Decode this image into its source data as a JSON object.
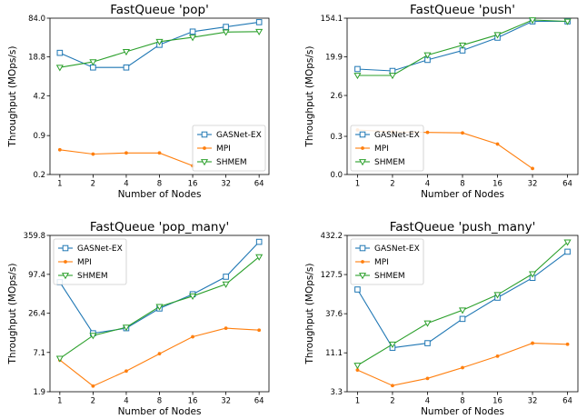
{
  "chart_data": [
    {
      "type": "line",
      "title": "FastQueue 'pop'",
      "xlabel": "Number of Nodes",
      "ylabel": "Throughput (MOps/s)",
      "y_scale": "log",
      "ylim": [
        0.2,
        84.0
      ],
      "yticks": [
        "0.2",
        "0.9",
        "4.2",
        "18.8",
        "84.0"
      ],
      "ytick_values": [
        0.2,
        0.9,
        4.2,
        18.8,
        84.0
      ],
      "categories": [
        "1",
        "2",
        "4",
        "8",
        "16",
        "32",
        "64"
      ],
      "legend_loc": "lower-right",
      "series": [
        {
          "name": "GASNet-EX",
          "color": "#1f77b4",
          "marker": "square",
          "values": [
            22,
            12.5,
            12.5,
            30,
            50,
            60,
            72
          ]
        },
        {
          "name": "MPI",
          "color": "#ff7f0e",
          "marker": "dot",
          "values": [
            0.52,
            0.44,
            0.46,
            0.46,
            0.28,
            null,
            null
          ]
        },
        {
          "name": "SHMEM",
          "color": "#2ca02c",
          "marker": "triangle-down",
          "values": [
            12.5,
            15.5,
            23,
            34,
            40,
            49,
            50
          ]
        }
      ]
    },
    {
      "type": "line",
      "title": "FastQueue 'push'",
      "xlabel": "Number of Nodes",
      "ylabel": "Throughput (MOps/s)",
      "y_scale": "log",
      "ylim": [
        0.0,
        154.1
      ],
      "yticks": [
        "0.0",
        "0.3",
        "2.6",
        "19.9",
        "154.1"
      ],
      "ytick_values": [
        0.04,
        0.3,
        2.6,
        19.9,
        154.1
      ],
      "categories": [
        "1",
        "2",
        "4",
        "8",
        "16",
        "32",
        "64"
      ],
      "legend_loc": "lower-left",
      "series": [
        {
          "name": "GASNet-EX",
          "color": "#1f77b4",
          "marker": "square",
          "values": [
            10.5,
            9.5,
            17,
            28,
            55,
            130,
            130
          ]
        },
        {
          "name": "MPI",
          "color": "#ff7f0e",
          "marker": "dot",
          "values": [
            0.42,
            0.38,
            0.37,
            0.36,
            0.2,
            0.055,
            null
          ]
        },
        {
          "name": "SHMEM",
          "color": "#2ca02c",
          "marker": "triangle-down",
          "values": [
            7.5,
            7.5,
            22,
            37,
            64,
            140,
            130
          ]
        }
      ]
    },
    {
      "type": "line",
      "title": "FastQueue 'pop_many'",
      "xlabel": "Number of Nodes",
      "ylabel": "Throughput (MOps/s)",
      "y_scale": "log",
      "ylim": [
        1.9,
        359.8
      ],
      "yticks": [
        "1.9",
        "7.1",
        "26.4",
        "97.4",
        "359.8"
      ],
      "ytick_values": [
        1.9,
        7.1,
        26.4,
        97.4,
        359.8
      ],
      "categories": [
        "1",
        "2",
        "4",
        "8",
        "16",
        "32",
        "64"
      ],
      "legend_loc": "upper-left",
      "series": [
        {
          "name": "GASNet-EX",
          "color": "#1f77b4",
          "marker": "square",
          "values": [
            75,
            13.5,
            16,
            31,
            50,
            90,
            290
          ]
        },
        {
          "name": "MPI",
          "color": "#ff7f0e",
          "marker": "dot",
          "values": [
            5.5,
            2.3,
            3.8,
            6.8,
            12,
            16,
            15
          ]
        },
        {
          "name": "SHMEM",
          "color": "#2ca02c",
          "marker": "triangle-down",
          "values": [
            5.8,
            12.5,
            16.5,
            33,
            47,
            70,
            175
          ]
        }
      ]
    },
    {
      "type": "line",
      "title": "FastQueue 'push_many'",
      "xlabel": "Number of Nodes",
      "ylabel": "Throughput (MOps/s)",
      "y_scale": "log",
      "ylim": [
        3.3,
        432.2
      ],
      "yticks": [
        "3.3",
        "11.1",
        "37.6",
        "127.5",
        "432.2"
      ],
      "ytick_values": [
        3.3,
        11.1,
        37.6,
        127.5,
        432.2
      ],
      "categories": [
        "1",
        "2",
        "4",
        "8",
        "16",
        "32",
        "64"
      ],
      "legend_loc": "upper-left",
      "series": [
        {
          "name": "GASNet-EX",
          "color": "#1f77b4",
          "marker": "square",
          "values": [
            80,
            13,
            15,
            32,
            62,
            115,
            260
          ]
        },
        {
          "name": "MPI",
          "color": "#ff7f0e",
          "marker": "dot",
          "values": [
            6.5,
            4.0,
            5.0,
            7.0,
            10,
            15,
            14.5
          ]
        },
        {
          "name": "SHMEM",
          "color": "#2ca02c",
          "marker": "triangle-down",
          "values": [
            7.5,
            14.5,
            28,
            42,
            68,
            130,
            350
          ]
        }
      ]
    }
  ]
}
